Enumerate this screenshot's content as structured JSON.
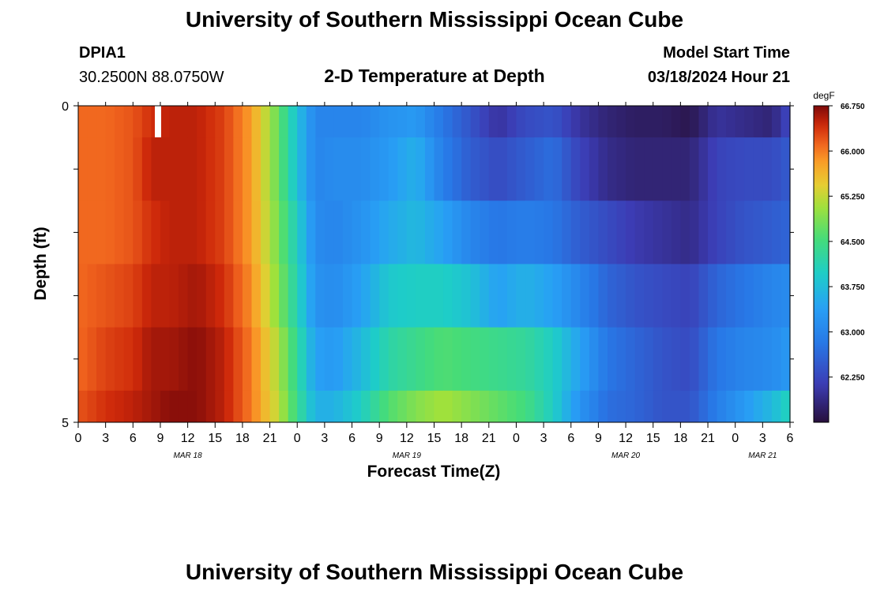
{
  "header": {
    "title": "University of Southern Mississippi Ocean Cube",
    "station": "DPIA1",
    "coords": "30.2500N  88.0750W",
    "plot_title": "2-D Temperature at Depth",
    "model_start_label": "Model Start Time",
    "model_start_value": "03/18/2024 Hour 21"
  },
  "footer": {
    "title": "University of Southern Mississippi Ocean Cube"
  },
  "chart_data": {
    "type": "heatmap",
    "title": "2-D Temperature at Depth",
    "xlabel": "Forecast Time(Z)",
    "ylabel": "Depth (ft)",
    "unit": "degF",
    "x_tick_labels": [
      "0",
      "3",
      "6",
      "9",
      "12",
      "15",
      "18",
      "21",
      "0",
      "3",
      "6",
      "9",
      "12",
      "15",
      "18",
      "21",
      "0",
      "3",
      "6",
      "9",
      "12",
      "15",
      "18",
      "21",
      "0",
      "3",
      "6"
    ],
    "date_labels": [
      {
        "label": "MAR 18",
        "hour": 12
      },
      {
        "label": "MAR 19",
        "hour": 36
      },
      {
        "label": "MAR 20",
        "hour": 60
      },
      {
        "label": "MAR 21",
        "hour": 75
      }
    ],
    "x_range_hours": [
      0,
      78
    ],
    "y_tick_labels": [
      "0",
      "5"
    ],
    "depth_range_ft": [
      0,
      5
    ],
    "colorbar": {
      "unit": "degF",
      "min": 61.5,
      "max": 66.75,
      "tick_values": [
        66.75,
        66.0,
        65.25,
        64.5,
        63.75,
        63.0,
        62.25
      ],
      "tick_labels": [
        "66.750",
        "66.000",
        "65.250",
        "64.500",
        "63.750",
        "63.000",
        "62.250"
      ]
    },
    "depth_bins_ft": [
      [
        0,
        0.5
      ],
      [
        0.5,
        1.5
      ],
      [
        1.5,
        2.5
      ],
      [
        2.5,
        3.5
      ],
      [
        3.5,
        4.5
      ],
      [
        4.5,
        5.0
      ]
    ],
    "time_anchors_hours": [
      0,
      3,
      6,
      8,
      10,
      13,
      16,
      19,
      22,
      24,
      26,
      28,
      31,
      34,
      37,
      40,
      43,
      46,
      49,
      52,
      55,
      58,
      61,
      64,
      67,
      70,
      73,
      76,
      78
    ],
    "temperature_degF": [
      [
        66.1,
        66.1,
        66.2,
        66.4,
        66.5,
        66.5,
        66.3,
        65.8,
        64.7,
        63.8,
        63.0,
        63.0,
        63.0,
        63.2,
        63.3,
        62.8,
        62.4,
        62.0,
        62.3,
        62.4,
        62.0,
        61.8,
        61.7,
        61.7,
        61.6,
        62.0,
        61.9,
        61.8,
        62.3
      ],
      [
        66.1,
        66.1,
        66.2,
        66.5,
        66.5,
        66.5,
        66.3,
        65.8,
        64.7,
        63.8,
        63.0,
        63.1,
        63.1,
        63.3,
        63.6,
        62.9,
        62.5,
        62.3,
        62.5,
        62.7,
        62.2,
        61.9,
        61.8,
        61.8,
        61.8,
        62.2,
        62.3,
        62.3,
        62.5
      ],
      [
        66.1,
        66.1,
        66.2,
        66.4,
        66.5,
        66.5,
        66.3,
        65.8,
        64.8,
        64.0,
        63.1,
        63.0,
        63.2,
        63.5,
        63.7,
        63.4,
        63.0,
        62.8,
        62.9,
        62.8,
        62.5,
        62.3,
        62.1,
        62.0,
        61.9,
        62.2,
        62.4,
        62.5,
        62.6
      ],
      [
        66.1,
        66.2,
        66.3,
        66.5,
        66.5,
        66.6,
        66.4,
        65.9,
        64.9,
        64.1,
        63.2,
        63.1,
        63.4,
        63.9,
        64.0,
        64.0,
        63.8,
        63.4,
        63.6,
        63.4,
        63.0,
        62.6,
        62.4,
        62.3,
        62.2,
        62.6,
        62.8,
        63.0,
        63.1
      ],
      [
        66.1,
        66.3,
        66.4,
        66.6,
        66.6,
        66.7,
        66.5,
        66.0,
        65.1,
        64.3,
        63.4,
        63.3,
        63.7,
        64.2,
        64.4,
        64.6,
        64.5,
        64.4,
        64.3,
        64.0,
        63.4,
        62.8,
        62.6,
        62.4,
        62.3,
        62.8,
        63.0,
        63.1,
        63.3
      ],
      [
        66.2,
        66.4,
        66.5,
        66.6,
        66.7,
        66.7,
        66.5,
        66.0,
        65.2,
        64.4,
        63.6,
        63.6,
        64.0,
        64.6,
        64.9,
        65.1,
        64.9,
        64.7,
        64.5,
        64.0,
        63.2,
        62.7,
        62.6,
        62.4,
        62.4,
        62.9,
        63.3,
        63.7,
        64.1
      ]
    ],
    "grid": false
  }
}
